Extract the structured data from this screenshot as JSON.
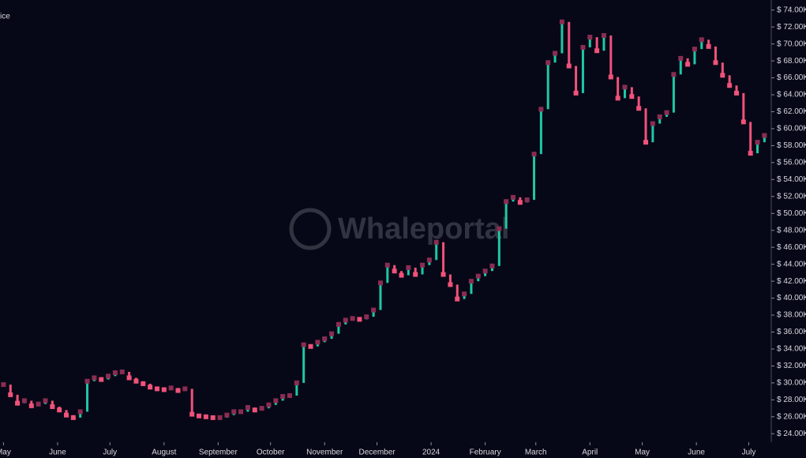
{
  "chart_data": {
    "type": "candlestick",
    "title": "ice",
    "watermark": "Whaleportal",
    "up_color": "#1fc7a5",
    "down_color": "#f0527a",
    "marker_color": "#8a2d52",
    "x": [
      0,
      4,
      8,
      12,
      16,
      20,
      24,
      28,
      32,
      36,
      40,
      44,
      48,
      52,
      56,
      60,
      64,
      68,
      72,
      76,
      80,
      84,
      88,
      92,
      96,
      100,
      104,
      108,
      112,
      116,
      120,
      124,
      128,
      132,
      136,
      140,
      144,
      148,
      152,
      156,
      160,
      164,
      168,
      172,
      176,
      180,
      184,
      188,
      192,
      196,
      200,
      204,
      208,
      212,
      216,
      220,
      224,
      228,
      232,
      236,
      240,
      244,
      248,
      252,
      256,
      260,
      264,
      268,
      272,
      276,
      280,
      284,
      288,
      292,
      296,
      300,
      304,
      308,
      312,
      316,
      320,
      324,
      328,
      332,
      336,
      340,
      344,
      348,
      352,
      356,
      360,
      364,
      368,
      372,
      376,
      380,
      384,
      388,
      392,
      396,
      400,
      404,
      408,
      412,
      416,
      420,
      424,
      428,
      432,
      436
    ],
    "values": [
      29800,
      28600,
      27600,
      27900,
      27300,
      27500,
      27900,
      27200,
      26800,
      26200,
      25900,
      26600,
      30200,
      30600,
      30400,
      30800,
      31200,
      31300,
      30600,
      30200,
      29900,
      29500,
      29300,
      29200,
      29400,
      29100,
      29300,
      26300,
      26100,
      26000,
      25900,
      25900,
      26200,
      26600,
      26600,
      27100,
      26800,
      27000,
      27400,
      27900,
      28400,
      28500,
      30000,
      34500,
      34300,
      34800,
      35200,
      35800,
      36900,
      37400,
      37600,
      37500,
      37800,
      38600,
      41800,
      43900,
      43200,
      42700,
      43600,
      42800,
      43900,
      44500,
      46600,
      42800,
      41600,
      39900,
      40500,
      42000,
      42600,
      43200,
      43800,
      48200,
      51400,
      51900,
      51300,
      51600,
      57000,
      62300,
      67800,
      68900,
      72600,
      67400,
      64200,
      69600,
      70800,
      69200,
      71000,
      66100,
      63600,
      64900,
      63800,
      62400,
      58400,
      60600,
      61400,
      61900,
      66400,
      68300,
      67600,
      69400,
      70500,
      69700,
      67800,
      66300,
      65100,
      64200,
      60800,
      57100,
      58400,
      59200
    ],
    "xlim": [
      -2,
      439
    ],
    "xticks": [
      {
        "value": 0,
        "label": "May"
      },
      {
        "value": 31,
        "label": "June"
      },
      {
        "value": 61,
        "label": "July"
      },
      {
        "value": 92,
        "label": "August"
      },
      {
        "value": 123,
        "label": "September"
      },
      {
        "value": 153,
        "label": "October"
      },
      {
        "value": 184,
        "label": "November"
      },
      {
        "value": 214,
        "label": "December"
      },
      {
        "value": 245,
        "label": "2024"
      },
      {
        "value": 276,
        "label": "February"
      },
      {
        "value": 305,
        "label": "March"
      },
      {
        "value": 336,
        "label": "April"
      },
      {
        "value": 366,
        "label": "May"
      },
      {
        "value": 397,
        "label": "June"
      },
      {
        "value": 427,
        "label": "July"
      }
    ],
    "ylim": [
      23000,
      75000
    ],
    "yticks": [
      {
        "value": 24000,
        "label": "$ 24.00K"
      },
      {
        "value": 26000,
        "label": "$ 26.00K"
      },
      {
        "value": 28000,
        "label": "$ 28.00K"
      },
      {
        "value": 30000,
        "label": "$ 30.00K"
      },
      {
        "value": 32000,
        "label": "$ 32.00K"
      },
      {
        "value": 34000,
        "label": "$ 34.00K"
      },
      {
        "value": 36000,
        "label": "$ 36.00K"
      },
      {
        "value": 38000,
        "label": "$ 38.00K"
      },
      {
        "value": 40000,
        "label": "$ 40.00K"
      },
      {
        "value": 42000,
        "label": "$ 42.00K"
      },
      {
        "value": 44000,
        "label": "$ 44.00K"
      },
      {
        "value": 46000,
        "label": "$ 46.00K"
      },
      {
        "value": 48000,
        "label": "$ 48.00K"
      },
      {
        "value": 50000,
        "label": "$ 50.00K"
      },
      {
        "value": 52000,
        "label": "$ 52.00K"
      },
      {
        "value": 54000,
        "label": "$ 54.00K"
      },
      {
        "value": 56000,
        "label": "$ 56.00K"
      },
      {
        "value": 58000,
        "label": "$ 58.00K"
      },
      {
        "value": 60000,
        "label": "$ 60.00K"
      },
      {
        "value": 62000,
        "label": "$ 62.00K"
      },
      {
        "value": 64000,
        "label": "$ 64.00K"
      },
      {
        "value": 66000,
        "label": "$ 66.00K"
      },
      {
        "value": 68000,
        "label": "$ 68.00K"
      },
      {
        "value": 70000,
        "label": "$ 70.00K"
      },
      {
        "value": 72000,
        "label": "$ 72.00K"
      },
      {
        "value": 74000,
        "label": "$ 74.00K"
      }
    ]
  }
}
